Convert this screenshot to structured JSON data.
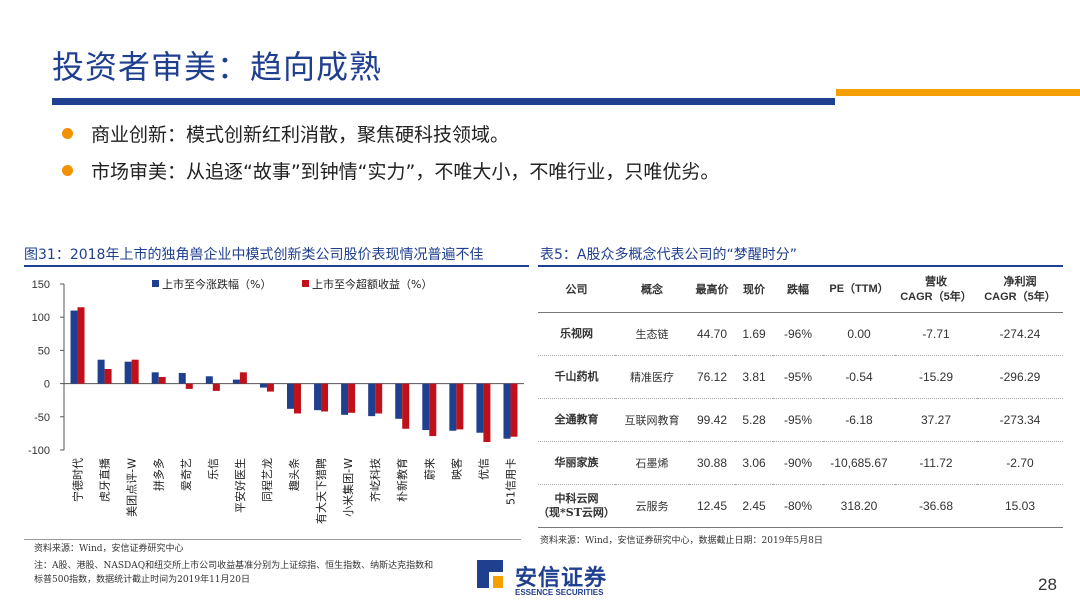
{
  "header": {
    "title": "投资者审美：趋向成熟"
  },
  "bullets": [
    "商业创新：模式创新红利消散，聚焦硬科技领域。",
    "市场审美：从追逐“故事”到钟情“实力”，不唯大小，不唯行业，只唯优劣。"
  ],
  "figure": {
    "title": "图31：2018年上市的独角兽企业中模式创新类公司股价表现情况普遍不佳"
  },
  "chart_data": {
    "type": "bar",
    "categories": [
      "宁德时代",
      "虎牙直播",
      "美团点评-W",
      "拼多多",
      "爱奇艺",
      "乐信",
      "平安好医生",
      "同程艺龙",
      "趣头条",
      "有大天下猎聘",
      "小米集团-W",
      "齐屹科技",
      "朴新教育",
      "蔚来",
      "映客",
      "优信",
      "51信用卡"
    ],
    "series": [
      {
        "name": "上市至今涨跌幅（%）",
        "color": "#1f3f8f",
        "values": [
          110,
          36,
          33,
          17,
          16,
          11,
          6,
          -6,
          -38,
          -40,
          -47,
          -49,
          -53,
          -70,
          -71,
          -74,
          -83
        ]
      },
      {
        "name": "上市至今超额收益（%）",
        "color": "#c0101a",
        "values": [
          115,
          22,
          36,
          10,
          -8,
          -11,
          17,
          -12,
          -45,
          -42,
          -44,
          -45,
          -68,
          -79,
          -69,
          -88,
          -80
        ]
      }
    ],
    "ylim": [
      -100,
      150
    ],
    "yticks": [
      150,
      100,
      50,
      0,
      -50,
      -100
    ],
    "legend": "top"
  },
  "table": {
    "title": "表5：A股众多概念代表公司的“梦醒时分”",
    "headers": [
      "公司",
      "概念",
      "最高价",
      "现价",
      "跌幅",
      "PE（TTM）",
      "营收\nCAGR（5年）",
      "净利润\nCAGR（5年）"
    ],
    "rows": [
      [
        "乐视网",
        "生态链",
        "44.70",
        "1.69",
        "-96%",
        "0.00",
        "-7.71",
        "-274.24"
      ],
      [
        "千山药机",
        "精准医疗",
        "76.12",
        "3.81",
        "-95%",
        "-0.54",
        "-15.29",
        "-296.29"
      ],
      [
        "全通教育",
        "互联网教育",
        "99.42",
        "5.28",
        "-95%",
        "-6.18",
        "37.27",
        "-273.34"
      ],
      [
        "华丽家族",
        "石墨烯",
        "30.88",
        "3.06",
        "-90%",
        "-10,685.67",
        "-11.72",
        "-2.70"
      ],
      [
        "中科云网\n（现*ST云网）",
        "云服务",
        "12.45",
        "2.45",
        "-80%",
        "318.20",
        "-36.68",
        "15.03"
      ]
    ]
  },
  "source_left": "资料来源：Wind，安信证券研究中心",
  "note_left": "注：A股、港股、NASDAQ和纽交所上市公司收益基准分别为上证综指、恒生指数、纳斯达克指数和标普500指数，数据统计截止时间为2019年11月20日",
  "source_right": "资料来源：Wind，安信证券研究中心，数据截止日期：2019年5月8日",
  "logo": {
    "cn": "安信证券",
    "en": "ESSENCE SECURITIES"
  },
  "page_number": "28",
  "colors": {
    "brand_navy": "#1f3f8f",
    "accent_orange": "#f5a000",
    "bullet_orange": "#f39200",
    "series_red": "#c0101a"
  }
}
